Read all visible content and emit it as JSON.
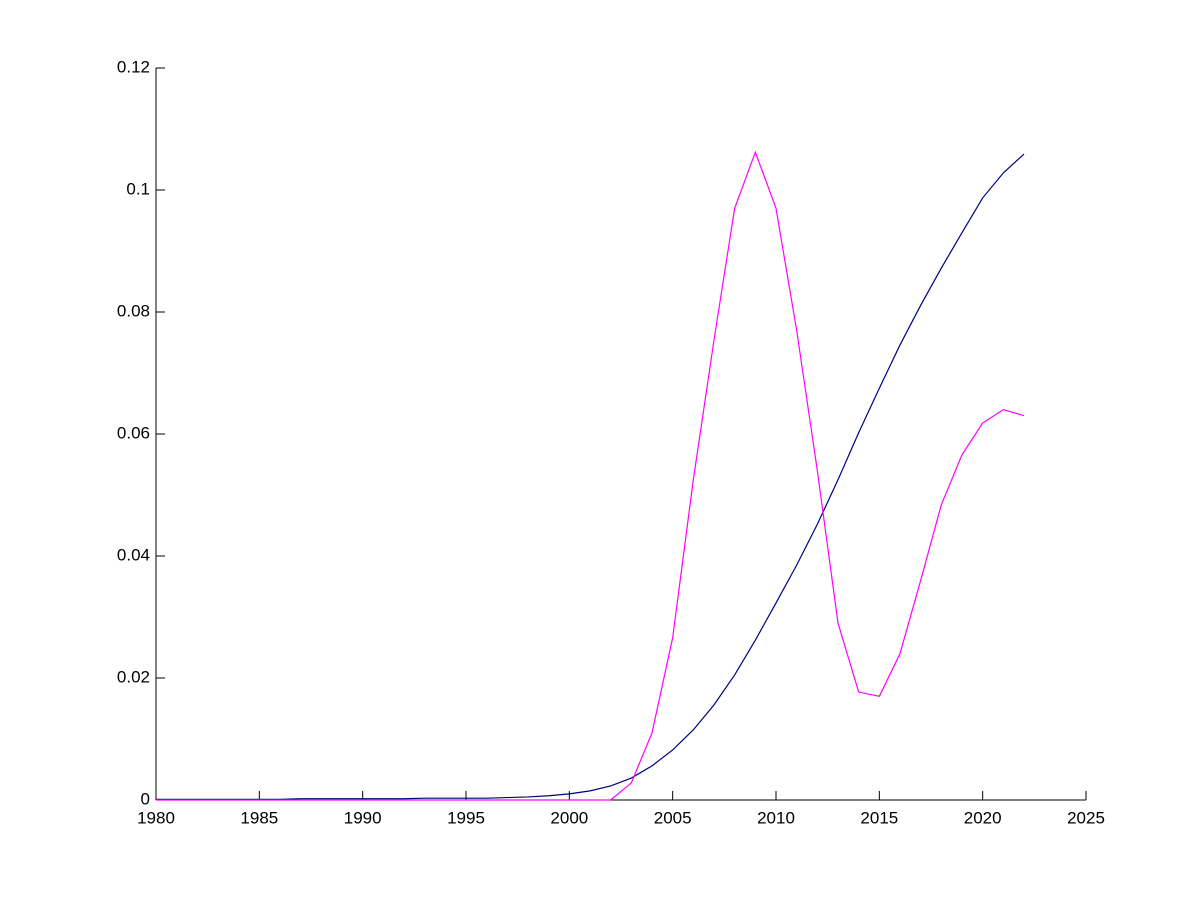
{
  "chart_data": {
    "type": "line",
    "x": [
      1980,
      1981,
      1982,
      1983,
      1984,
      1985,
      1986,
      1987,
      1988,
      1989,
      1990,
      1991,
      1992,
      1993,
      1994,
      1995,
      1996,
      1997,
      1998,
      1999,
      2000,
      2001,
      2002,
      2003,
      2004,
      2005,
      2006,
      2007,
      2008,
      2009,
      2010,
      2011,
      2012,
      2013,
      2014,
      2015,
      2016,
      2017,
      2018,
      2019,
      2020,
      2021,
      2022
    ],
    "series": [
      {
        "color": "#00007f",
        "values": [
          0.0001,
          0.0001,
          0.0001,
          0.0001,
          0.0001,
          0.0001,
          0.0001,
          0.0002,
          0.0002,
          0.0002,
          0.0002,
          0.0002,
          0.0002,
          0.0003,
          0.0003,
          0.0003,
          0.0003,
          0.0004,
          0.0005,
          0.0007,
          0.001,
          0.0015,
          0.0023,
          0.0036,
          0.0056,
          0.0082,
          0.0115,
          0.0156,
          0.0205,
          0.0262,
          0.0323,
          0.0385,
          0.0452,
          0.0525,
          0.0602,
          0.0675,
          0.0746,
          0.0811,
          0.0872,
          0.093,
          0.0987,
          0.1028,
          0.1059
        ]
      },
      {
        "color": "#ff00ff",
        "values": [
          0,
          0,
          0,
          0,
          0,
          0,
          0,
          0,
          0,
          0,
          0,
          0,
          0,
          0,
          0,
          0,
          0,
          0,
          0,
          0,
          0,
          0,
          0,
          0.0028,
          0.011,
          0.0266,
          0.0525,
          0.0754,
          0.097,
          0.1062,
          0.097,
          0.077,
          0.054,
          0.029,
          0.0177,
          0.017,
          0.024,
          0.036,
          0.0484,
          0.0566,
          0.0618,
          0.064,
          0.063
        ]
      }
    ],
    "xlim": [
      1980,
      2025
    ],
    "xticks": [
      1980,
      1985,
      1990,
      1995,
      2000,
      2005,
      2010,
      2015,
      2020,
      2025
    ],
    "ylim": [
      0,
      0.12
    ],
    "yticks": [
      0,
      0.02,
      0.04,
      0.06,
      0.08,
      0.1,
      0.12
    ],
    "grid": false
  }
}
